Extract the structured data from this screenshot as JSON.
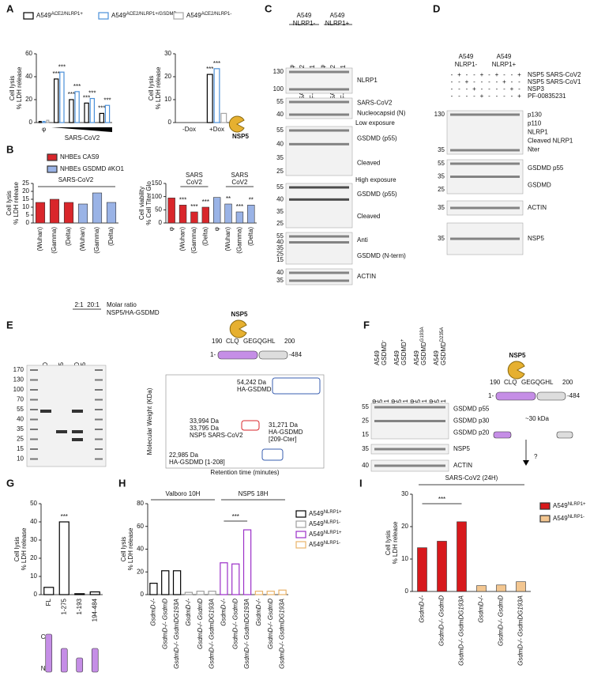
{
  "panel_labels": [
    "A",
    "B",
    "C",
    "D",
    "E",
    "F",
    "G",
    "H",
    "I"
  ],
  "chart_data": [
    {
      "type": "bar",
      "ylabel": [
        "Cell lysis",
        "% LDH release"
      ],
      "xlabel": "SARS-CoV2",
      "categories": [
        "φ",
        null,
        null,
        null,
        null
      ],
      "ylim": [
        0,
        60
      ],
      "yticks": [
        0,
        20,
        40,
        60
      ],
      "bar_style": "outline",
      "series": [
        {
          "name": "A549ACE2/NLRP1+",
          "color": "#000000",
          "values": [
            1,
            38,
            20,
            17,
            8
          ],
          "stars": [
            null,
            "***",
            "***",
            "***",
            "***"
          ]
        },
        {
          "name": "A549ACE2/NLRP1+/GSDMD-",
          "color": "#4a90d9",
          "values": [
            1,
            44,
            27,
            21,
            15
          ],
          "stars": [
            null,
            "***",
            "***",
            "***",
            "***"
          ]
        },
        {
          "name": "A549ACE2/NLRP1-",
          "color": "#a6a6a6",
          "values": [
            2,
            null,
            null,
            null,
            null
          ]
        }
      ]
    },
    {
      "type": "bar",
      "ylabel": [
        "Cell lysis",
        "% LDH release"
      ],
      "categories": [
        "-Dox",
        "+Dox"
      ],
      "ylim": [
        0,
        30
      ],
      "yticks": [
        0,
        10,
        20,
        30
      ],
      "bar_style": "outline",
      "annotation": "NSP5",
      "series": [
        {
          "color": "#000000",
          "values": [
            0,
            21
          ],
          "stars": [
            null,
            "***"
          ]
        },
        {
          "color": "#4a90d9",
          "values": [
            0,
            23.5
          ],
          "stars": [
            null,
            "***"
          ]
        },
        {
          "color": "#a6a6a6",
          "values": [
            0,
            4
          ]
        }
      ]
    },
    {
      "type": "bar",
      "ylabel": [
        "Cell lysis",
        "% LDH release"
      ],
      "group_label": "SARS-CoV2",
      "categories": [
        "(Wuhan)",
        "(Gamma)",
        "(Delta)",
        "(Wuhan)",
        "(Gamma)",
        "(Delta)"
      ],
      "ylim": [
        0,
        25
      ],
      "yticks": [
        0,
        5,
        10,
        15,
        20,
        25
      ],
      "bar_style": "filled",
      "series": [
        {
          "name": "NHBEs CAS9",
          "color": "#d9262b",
          "values": [
            13,
            15,
            13,
            null,
            null,
            null
          ]
        },
        {
          "name": "NHBEs GSDMD #KO1",
          "color": "#9ab3e6",
          "values": [
            null,
            null,
            null,
            12,
            19,
            13
          ]
        }
      ]
    },
    {
      "type": "bar",
      "ylabel": [
        "Cell viability",
        "% Cell Titer Glo"
      ],
      "group_labels": [
        [
          "SARS",
          "CoV2"
        ],
        [
          "SARS",
          "CoV2"
        ]
      ],
      "categories": [
        "φ",
        "(Wuhan)",
        "(Gamma)",
        "(Delta)",
        "φ",
        "(Wuhan)",
        "(Gamma)",
        "(Delta)"
      ],
      "ylim": [
        0,
        150
      ],
      "yticks": [
        0,
        50,
        100,
        150
      ],
      "bar_style": "filled",
      "series": [
        {
          "color": "#d9262b",
          "values": [
            95,
            68,
            42,
            60,
            null,
            null,
            null,
            null
          ],
          "stars": [
            null,
            "***",
            "***",
            "***",
            null,
            null,
            null,
            null
          ]
        },
        {
          "color": "#9ab3e6",
          "values": [
            null,
            null,
            null,
            null,
            97,
            72,
            42,
            68
          ],
          "stars": [
            null,
            null,
            null,
            null,
            null,
            "**",
            "***",
            "**"
          ]
        }
      ]
    },
    {
      "type": "bar",
      "ylabel": [
        "Cell lysis",
        "% LDH release"
      ],
      "categories": [
        "FL",
        "1-275",
        "1-193",
        "194-484"
      ],
      "ylim": [
        0,
        50
      ],
      "yticks": [
        0,
        10,
        20,
        30,
        40,
        50
      ],
      "bar_style": "outline",
      "domain_labels": [
        "C",
        "N"
      ],
      "series": [
        {
          "color": "#000000",
          "values": [
            4,
            40,
            0.5,
            1.5
          ],
          "stars": [
            null,
            "***",
            null,
            null
          ]
        }
      ]
    },
    {
      "type": "bar",
      "ylabel": [
        "Cell lysis",
        "% LDH release"
      ],
      "group_labels": [
        "Valboro 10H",
        "NSP5 18H"
      ],
      "significance": "***",
      "categories": [
        "GsdmD-/-",
        "GsdmD-/- GsdmD",
        "GsdmD-/- GsdmDG193A",
        "GsdmD-/-",
        "GsdmD-/- GsdmD",
        "GsdmD-/- GsdmDG193A",
        "GsdmD-/-",
        "GsdmD-/- GsdmD",
        "GsdmD-/- GsdmDG193A",
        "GsdmD-/-",
        "GsdmD-/- GsdmD",
        "GsdmD-/- GsdmDG193A"
      ],
      "ylim": [
        0,
        80
      ],
      "yticks": [
        0,
        20,
        40,
        60,
        80
      ],
      "bar_style": "outline",
      "series": [
        {
          "name": "A549NLRP1+",
          "color": "#000000",
          "values": [
            10,
            21,
            21,
            null,
            null,
            null,
            null,
            null,
            null,
            null,
            null,
            null
          ]
        },
        {
          "name": "A549NLRP1-",
          "color": "#9e9e9e",
          "values": [
            null,
            null,
            null,
            2,
            3,
            3,
            null,
            null,
            null,
            null,
            null,
            null
          ]
        },
        {
          "name": "A549NLRP1+",
          "color": "#9b30c8",
          "values": [
            null,
            null,
            null,
            null,
            null,
            null,
            28,
            27,
            57,
            null,
            null,
            null
          ]
        },
        {
          "name": "A549NLRP1-",
          "color": "#e8b36a",
          "values": [
            null,
            null,
            null,
            null,
            null,
            null,
            null,
            null,
            null,
            3,
            3,
            4
          ]
        }
      ]
    },
    {
      "type": "bar",
      "title": "SARS-CoV2 (24H)",
      "ylabel": [
        "Cell lysis",
        "% LDH release"
      ],
      "significance": "***",
      "categories": [
        "GsdmD-/-",
        "GsdmD-/- GsdmD",
        "GsdmD-/- GsdmDG193A",
        "GsdmD-/-",
        "GsdmD-/- GsdmD",
        "GsdmD-/- GsdmDG193A"
      ],
      "ylim": [
        0,
        30
      ],
      "yticks": [
        0,
        10,
        20,
        30
      ],
      "bar_style": "filled",
      "series": [
        {
          "name": "A549NLRP1+",
          "color": "#d7191c",
          "values": [
            13.5,
            15.5,
            21.5,
            null,
            null,
            null
          ]
        },
        {
          "name": "A549NLRP1-",
          "color": "#f3c690",
          "values": [
            null,
            null,
            null,
            1.8,
            2,
            3
          ]
        }
      ]
    }
  ],
  "blots": {
    "C": {
      "header": [
        [
          "A549",
          "NLRP1-"
        ],
        [
          "A549",
          "NLRP1+"
        ]
      ],
      "lanes": [
        "φ",
        "SARS-CoV2",
        "PF-00835231",
        "φ",
        "SARS-CoV2",
        "PF-00835231"
      ],
      "blocks": [
        {
          "markers": [
            130,
            100
          ],
          "labels": [
            "NLRP1"
          ]
        },
        {
          "markers": [
            55,
            40
          ],
          "labels": [
            "SARS-CoV2",
            "Nucleocapsid (N)"
          ]
        },
        {
          "note": "Low exposure",
          "markers": [
            55,
            40,
            35,
            25
          ],
          "labels": [
            "GSDMD (p55)",
            "Cleaved"
          ]
        },
        {
          "note": "High exposure",
          "markers": [
            55,
            40,
            35,
            25
          ],
          "labels": [
            "GSDMD (p55)",
            "Cleaved"
          ]
        },
        {
          "markers": [
            55,
            40,
            35,
            25,
            15
          ],
          "labels": [
            "Anti",
            "GSDMD (N-term)"
          ]
        },
        {
          "markers": [
            40,
            35
          ],
          "labels": [
            "ACTIN"
          ]
        }
      ]
    },
    "D": {
      "header": [
        [
          "A549",
          "NLRP1-"
        ],
        [
          "A549",
          "NLRP1+"
        ]
      ],
      "treatments": [
        {
          "name": "NSP5 SARS-CoV2",
          "signs": [
            "-",
            "+",
            "-",
            "-",
            "+",
            "-",
            "+",
            "-",
            "-",
            "+"
          ]
        },
        {
          "name": "NSP5 SARS-CoV1",
          "signs": [
            "-",
            "-",
            "+",
            "-",
            "-",
            "-",
            "-",
            "+",
            "-",
            "-"
          ]
        },
        {
          "name": "NSP3",
          "signs": [
            "-",
            "-",
            "-",
            "+",
            "-",
            "-",
            "-",
            "-",
            "+",
            "-"
          ]
        },
        {
          "name": "PF-00835231",
          "signs": [
            "-",
            "-",
            "-",
            "-",
            "+",
            "-",
            "-",
            "-",
            "-",
            "+"
          ]
        }
      ],
      "blocks": [
        {
          "markers": [
            130,
            35
          ],
          "labels": [
            "p130",
            "p110",
            "NLRP1",
            "Cleaved NLRP1",
            "Nter"
          ]
        },
        {
          "markers": [
            55,
            35,
            25
          ],
          "labels": [
            "GSDMD p55",
            "GSDMD"
          ]
        },
        {
          "markers": [
            35
          ],
          "labels": [
            "ACTIN"
          ]
        },
        {
          "markers": [
            35
          ],
          "labels": [
            "NSP5"
          ]
        }
      ]
    },
    "E": {
      "lanes": [
        [
          "HA-GSGMD"
        ],
        [
          "NSP5"
        ],
        [
          "HA-GSDMD",
          "+ NSP5"
        ]
      ],
      "ratios": [
        "2:1",
        "20:1"
      ],
      "ratio_label": [
        "Molar ratio",
        "NSP5/HA-GSDMD"
      ],
      "markers": [
        170,
        130,
        100,
        70,
        55,
        40,
        35,
        25,
        15,
        10
      ],
      "diagram": [
        "NSP5",
        "190",
        "CLQ",
        "GEGQGHL",
        "200",
        "1-",
        "-484"
      ],
      "ms": {
        "ylabel": "Molecular Weight (KDa)",
        "xlabel": "Retention time (minutes)",
        "peaks": [
          [
            "54,242 Da",
            "HA-GSDMD"
          ],
          [
            "31,271 Da",
            "HA-GSDMD",
            "[209-Cter]"
          ],
          [
            "33,994 Da",
            "33,795 Da",
            "NSP5 SARS-CoV2"
          ],
          [
            "22,985 Da",
            "HA-GSDMD [1-208]"
          ]
        ]
      }
    },
    "F": {
      "header": [
        [
          "A549",
          "GSDMD-"
        ],
        [
          "A549",
          "GSDMD+"
        ],
        [
          "A549",
          "GSDMDG193A"
        ],
        [
          "A549",
          "GSDMDD235A"
        ]
      ],
      "lanes": [
        "φ",
        "NSP5",
        "CASP1",
        "φ",
        "NSP5",
        "CASP1",
        "φ",
        "NSP5",
        "CASP1",
        "φ",
        "NSP5",
        "CASP1"
      ],
      "blocks": [
        {
          "markers": [
            55,
            25,
            15
          ],
          "labels": [
            "GSDMD p55",
            "GSDMD p30",
            "GSDMD p20"
          ]
        },
        {
          "markers": [
            35
          ],
          "labels": [
            "NSP5"
          ]
        },
        {
          "markers": [
            40
          ],
          "labels": [
            "ACTIN"
          ]
        }
      ],
      "diagram": [
        "NSP5",
        "190",
        "CLQ",
        "GEGQGHL",
        "200",
        "1-",
        "-484",
        "~30 kDa",
        "?"
      ]
    }
  }
}
